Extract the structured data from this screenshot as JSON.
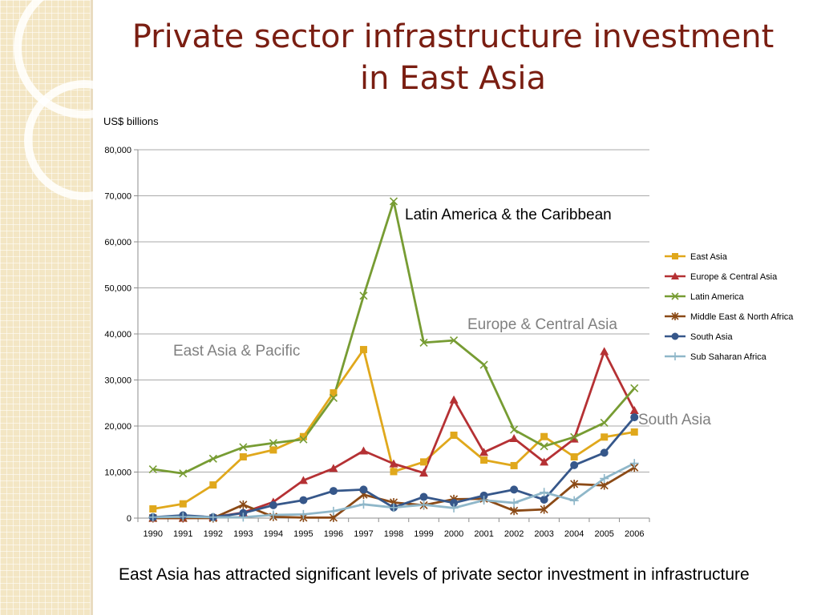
{
  "title": "Private sector infrastructure investment in East Asia",
  "caption": "East Asia has attracted significant levels of private sector investment in infrastructure",
  "annotations": {
    "latin_america": "Latin America & the Caribbean",
    "europe": "Europe & Central Asia",
    "east_asia": "East Asia & Pacific",
    "south_asia": "South Asia"
  },
  "chart_data": {
    "type": "line",
    "ylabel": "US$ billions",
    "ylim": [
      0,
      80000
    ],
    "yticks": [
      "0",
      "10,000",
      "20,000",
      "30,000",
      "40,000",
      "50,000",
      "60,000",
      "70,000",
      "80,000"
    ],
    "categories": [
      "1990",
      "1991",
      "1992",
      "1993",
      "1994",
      "1995",
      "1996",
      "1997",
      "1998",
      "1999",
      "2000",
      "2001",
      "2002",
      "2003",
      "2004",
      "2005",
      "2006"
    ],
    "legend_position": "right",
    "series": [
      {
        "name": "East Asia",
        "color": "#e0a81c",
        "marker": "square",
        "values": [
          2000,
          3100,
          7200,
          13300,
          14800,
          17700,
          27200,
          36600,
          10100,
          12200,
          18000,
          12600,
          11400,
          17700,
          13300,
          17600,
          18700
        ]
      },
      {
        "name": "Europe & Central Asia",
        "color": "#b53134",
        "marker": "triangle",
        "values": [
          0,
          0,
          200,
          1200,
          3500,
          8200,
          10800,
          14600,
          11800,
          9800,
          25700,
          14300,
          17300,
          12200,
          17200,
          36200,
          23400
        ]
      },
      {
        "name": "Latin America",
        "color": "#779c33",
        "marker": "x",
        "values": [
          10600,
          9700,
          12900,
          15400,
          16300,
          17100,
          26100,
          48300,
          68800,
          38100,
          38600,
          33300,
          19200,
          15600,
          17600,
          20700,
          28200
        ]
      },
      {
        "name": "Middle East & North Africa",
        "color": "#8b4a16",
        "marker": "star",
        "values": [
          0,
          0,
          0,
          2900,
          300,
          100,
          100,
          5100,
          3400,
          2800,
          4100,
          4200,
          1600,
          1900,
          7400,
          7100,
          11000
        ]
      },
      {
        "name": "South Asia",
        "color": "#36578a",
        "marker": "circle",
        "values": [
          200,
          600,
          200,
          1100,
          2800,
          3900,
          5900,
          6200,
          2300,
          4600,
          3300,
          4900,
          6200,
          4000,
          11500,
          14200,
          21900
        ]
      },
      {
        "name": "Sub Saharan Africa",
        "color": "#8fb7c9",
        "marker": "plus",
        "values": [
          200,
          300,
          200,
          200,
          700,
          800,
          1500,
          3000,
          2300,
          2900,
          2200,
          3900,
          3300,
          5600,
          3800,
          8600,
          11900
        ]
      }
    ]
  }
}
